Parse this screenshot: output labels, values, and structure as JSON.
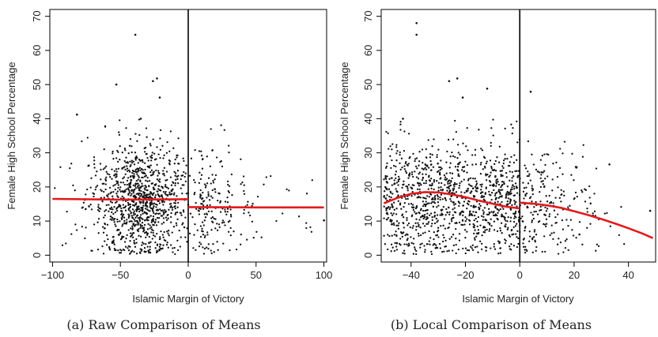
{
  "figure": {
    "panels": [
      {
        "caption": "(a) Raw Comparison of Means",
        "xlabel": "Islamic Margin of Victory",
        "ylabel": "Female High School Percentage",
        "xticks": [
          "−100",
          "−50",
          "0",
          "50",
          "100"
        ],
        "yticks": [
          "0",
          "10",
          "20",
          "30",
          "40",
          "50",
          "60",
          "70"
        ]
      },
      {
        "caption": "(b) Local Comparison of Means",
        "xlabel": "Islamic Margin of Victory",
        "ylabel": "Female High School Percentage",
        "xticks": [
          "−40",
          "−20",
          "0",
          "20",
          "40"
        ],
        "yticks": [
          "0",
          "10",
          "20",
          "30",
          "40",
          "50",
          "60",
          "70"
        ]
      }
    ]
  },
  "chart_data": [
    {
      "type": "scatter",
      "title": "",
      "xlabel": "Islamic Margin of Victory",
      "ylabel": "Female High School Percentage",
      "xlim": [
        -102,
        102
      ],
      "ylim": [
        -2,
        72
      ],
      "xticks": [
        -100,
        -50,
        0,
        50,
        100
      ],
      "yticks": [
        0,
        10,
        20,
        30,
        40,
        50,
        60,
        70
      ],
      "cutoff_line_x": 0,
      "fit": {
        "color": "#e31a1c",
        "left": [
          [
            -100,
            16.5
          ],
          [
            -50,
            16.3
          ],
          [
            0,
            16.4
          ]
        ],
        "right": [
          [
            0,
            14.1
          ],
          [
            50,
            14.0
          ],
          [
            100,
            14.0
          ]
        ]
      },
      "points_summary": "dense scatter of roughly 1300 municipalities, concentrated between x = -70 and 30, y = 0 to 40",
      "notable_points": [
        [
          -39,
          64.6
        ],
        [
          -23,
          51.8
        ],
        [
          -26,
          51.0
        ],
        [
          -53,
          50.0
        ],
        [
          -21,
          46.2
        ],
        [
          -82,
          41.2
        ],
        [
          -35,
          40.0
        ],
        [
          100,
          10.2
        ]
      ],
      "point_color": "#111111"
    },
    {
      "type": "scatter",
      "title": "",
      "xlabel": "Islamic Margin of Victory",
      "ylabel": "Female High School Percentage",
      "xlim": [
        -51,
        50
      ],
      "ylim": [
        -2,
        72
      ],
      "xticks": [
        -40,
        -20,
        0,
        20,
        40
      ],
      "yticks": [
        0,
        10,
        20,
        30,
        40,
        50,
        60,
        70
      ],
      "cutoff_line_x": 0,
      "fit": {
        "color": "#e31a1c",
        "left": [
          [
            -50,
            15.2
          ],
          [
            -45,
            16.8
          ],
          [
            -40,
            18.0
          ],
          [
            -35,
            18.5
          ],
          [
            -30,
            18.4
          ],
          [
            -25,
            17.8
          ],
          [
            -20,
            17.0
          ],
          [
            -15,
            16.0
          ],
          [
            -10,
            15.1
          ],
          [
            -5,
            14.2
          ],
          [
            0,
            13.7
          ]
        ],
        "right": [
          [
            0,
            15.4
          ],
          [
            5,
            15.1
          ],
          [
            10,
            14.6
          ],
          [
            15,
            13.9
          ],
          [
            20,
            12.9
          ],
          [
            25,
            11.8
          ],
          [
            30,
            10.6
          ],
          [
            35,
            9.3
          ],
          [
            40,
            7.9
          ],
          [
            45,
            6.4
          ],
          [
            49,
            5.0
          ]
        ]
      },
      "points_summary": "dense scatter of municipalities with margin within ±50, mostly y = 0 to 40",
      "notable_points": [
        [
          -38,
          68.0
        ],
        [
          -38,
          64.6
        ],
        [
          -23,
          51.8
        ],
        [
          -26,
          51.0
        ],
        [
          -21,
          46.2
        ],
        [
          -12,
          48.8
        ],
        [
          4,
          47.9
        ],
        [
          -43,
          40.0
        ],
        [
          33,
          26.6
        ],
        [
          48,
          13.0
        ]
      ],
      "point_color": "#111111"
    }
  ]
}
